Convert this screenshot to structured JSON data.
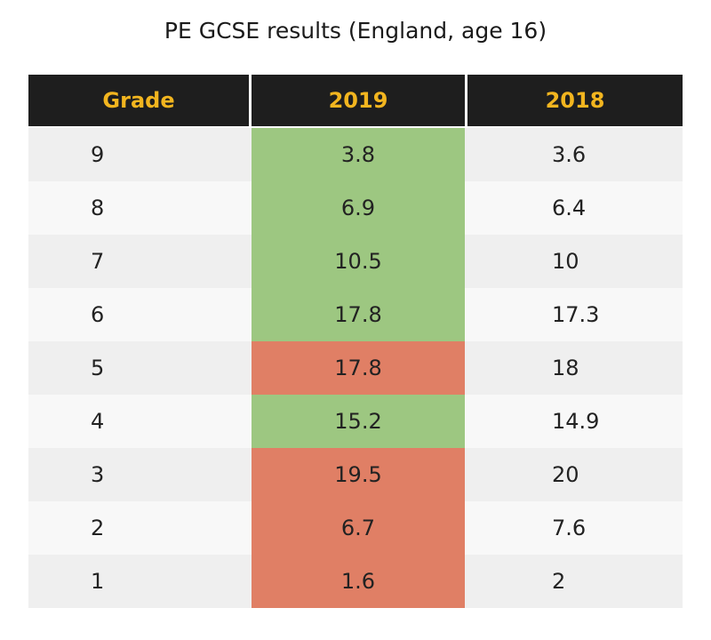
{
  "title": "PE GCSE results (England, age 16)",
  "colors": {
    "header_bg": "#1e1e1e",
    "header_text": "#f2b51f",
    "increase": "#9dc781",
    "decrease": "#e07f65"
  },
  "chart_data": {
    "type": "table",
    "title": "PE GCSE results (England, age 16)",
    "columns": [
      "Grade",
      "2019",
      "2018"
    ],
    "rows": [
      {
        "grade": "9",
        "y2019": "3.8",
        "y2018": "3.6",
        "status": "increase"
      },
      {
        "grade": "8",
        "y2019": "6.9",
        "y2018": "6.4",
        "status": "increase"
      },
      {
        "grade": "7",
        "y2019": "10.5",
        "y2018": "10",
        "status": "increase"
      },
      {
        "grade": "6",
        "y2019": "17.8",
        "y2018": "17.3",
        "status": "increase"
      },
      {
        "grade": "5",
        "y2019": "17.8",
        "y2018": "18",
        "status": "decrease"
      },
      {
        "grade": "4",
        "y2019": "15.2",
        "y2018": "14.9",
        "status": "increase"
      },
      {
        "grade": "3",
        "y2019": "19.5",
        "y2018": "20",
        "status": "decrease"
      },
      {
        "grade": "2",
        "y2019": "6.7",
        "y2018": "7.6",
        "status": "decrease"
      },
      {
        "grade": "1",
        "y2019": "1.6",
        "y2018": "2",
        "status": "decrease"
      }
    ]
  }
}
